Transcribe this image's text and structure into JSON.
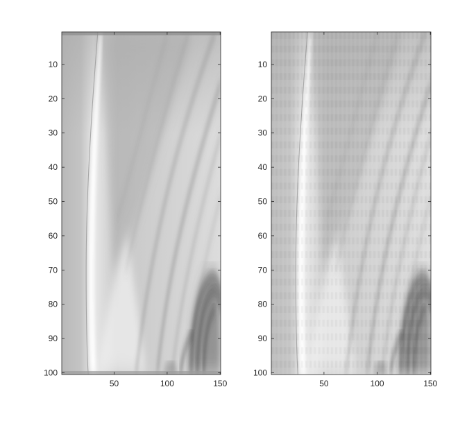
{
  "chart_data": [
    {
      "type": "heatmap",
      "colormap": "gray",
      "title": "",
      "xlabel": "",
      "ylabel": "",
      "xlim": [
        0.5,
        150.5
      ],
      "ylim": [
        0.5,
        100.5
      ],
      "y_reversed": true,
      "grid": false,
      "xticks": [
        50,
        100,
        150
      ],
      "xtick_labels": [
        "50",
        "100",
        "150"
      ],
      "yticks": [
        10,
        20,
        30,
        40,
        50,
        60,
        70,
        80,
        90,
        100
      ],
      "ytick_labels": [
        "10",
        "20",
        "30",
        "40",
        "50",
        "60",
        "70",
        "80",
        "90",
        "100"
      ],
      "image_size": [
        100,
        150
      ]
    },
    {
      "type": "heatmap",
      "colormap": "gray",
      "title": "",
      "xlabel": "",
      "ylabel": "",
      "xlim": [
        0.5,
        150.5
      ],
      "ylim": [
        0.5,
        100.5
      ],
      "y_reversed": true,
      "grid": false,
      "xticks": [
        50,
        100,
        150
      ],
      "xtick_labels": [
        "50",
        "100",
        "150"
      ],
      "yticks": [
        10,
        20,
        30,
        40,
        50,
        60,
        70,
        80,
        90,
        100
      ],
      "ytick_labels": [
        "10",
        "20",
        "30",
        "40",
        "50",
        "60",
        "70",
        "80",
        "90",
        "100"
      ],
      "image_size": [
        100,
        150
      ]
    }
  ]
}
